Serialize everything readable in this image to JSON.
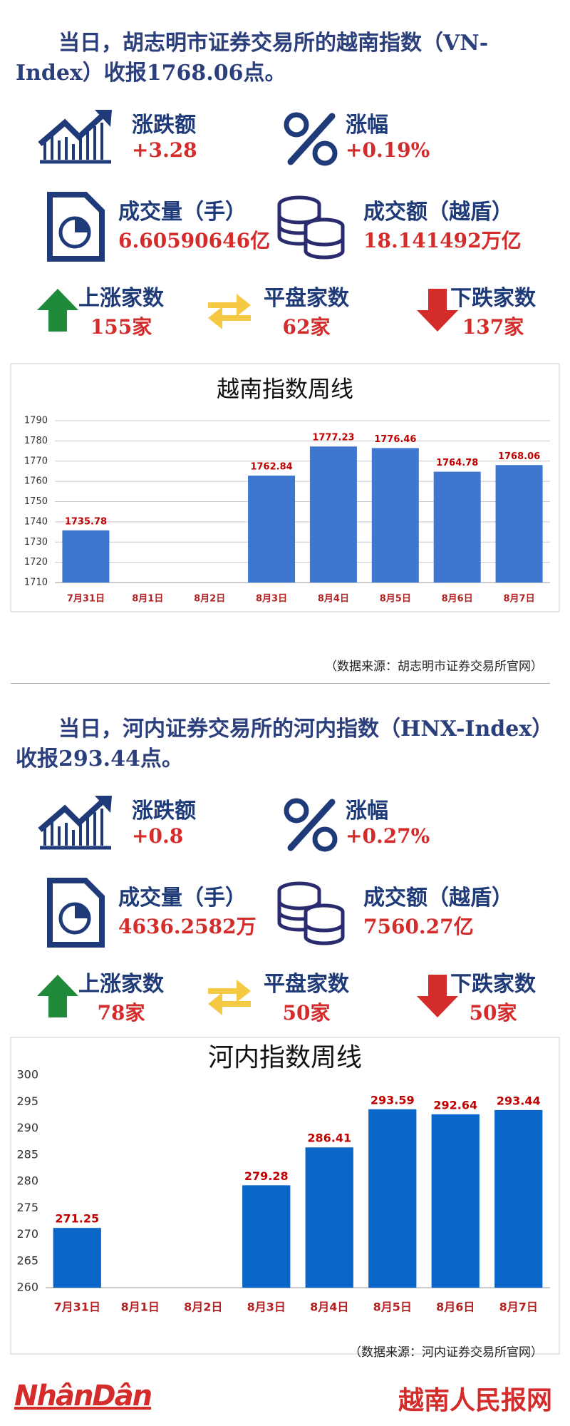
{
  "sections": [
    {
      "headline": "当日，胡志明市证券交易所的越南指数（VN-Index）收报1768.06点。",
      "stats": [
        {
          "label": "涨跌额",
          "value": "+3.28"
        },
        {
          "label": "涨幅",
          "value": "+0.19%"
        },
        {
          "label": "成交量（手）",
          "value": "6.60590646亿"
        },
        {
          "label": "成交额（越盾）",
          "value": "18.141492万亿"
        },
        {
          "label": "上涨家数",
          "value": "155家"
        },
        {
          "label": "平盘家数",
          "value": "62家"
        },
        {
          "label": "下跌家数",
          "value": "137家"
        }
      ],
      "source": "（数据来源：胡志明市证券交易所官网）"
    },
    {
      "headline": "当日，河内证券交易所的河内指数（HNX-Index）收报293.44点。",
      "stats": [
        {
          "label": "涨跌额",
          "value": "+0.8"
        },
        {
          "label": "涨幅",
          "value": "+0.27%"
        },
        {
          "label": "成交量（手）",
          "value": "4636.2582万"
        },
        {
          "label": "成交额（越盾）",
          "value": "7560.27亿"
        },
        {
          "label": "上涨家数",
          "value": "78家"
        },
        {
          "label": "平盘家数",
          "value": "50家"
        },
        {
          "label": "下跌家数",
          "value": "50家"
        }
      ],
      "source": "（数据来源：河内证券交易所官网）"
    }
  ],
  "chart_data": [
    {
      "type": "bar",
      "title": "越南指数周线",
      "categories": [
        "7月31日",
        "8月1日",
        "8月2日",
        "8月3日",
        "8月4日",
        "8月5日",
        "8月6日",
        "8月7日"
      ],
      "values": [
        1735.78,
        null,
        null,
        1762.84,
        1777.23,
        1776.46,
        1764.78,
        1768.06
      ],
      "color": "#3f77cf",
      "label_color": "#c00000",
      "ylim": [
        1710,
        1790
      ],
      "yticks": [
        1710,
        1720,
        1730,
        1740,
        1750,
        1760,
        1770,
        1780,
        1790
      ],
      "grid": true
    },
    {
      "type": "bar",
      "title": "河内指数周线",
      "categories": [
        "7月31日",
        "8月1日",
        "8月2日",
        "8月3日",
        "8月4日",
        "8月5日",
        "8月6日",
        "8月7日"
      ],
      "values": [
        271.25,
        null,
        null,
        279.28,
        286.41,
        293.59,
        292.64,
        293.44
      ],
      "color": "#0a66c8",
      "label_color": "#c00000",
      "ylim": [
        260,
        300
      ],
      "yticks": [
        260,
        265,
        270,
        275,
        280,
        285,
        290,
        295,
        300
      ],
      "grid": false
    }
  ],
  "footer": {
    "logo": "NhânDân",
    "site": "越南人民报网"
  }
}
